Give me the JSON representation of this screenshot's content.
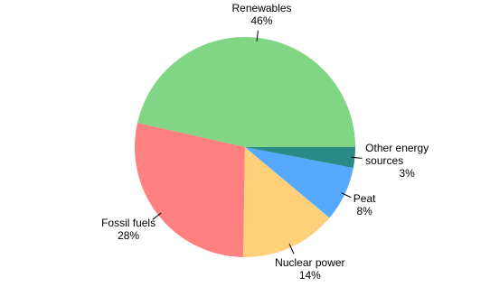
{
  "chart_data": {
    "type": "pie",
    "categories": [
      "Renewables",
      "Fossil fuels",
      "Nuclear power",
      "Peat",
      "Other energy sources"
    ],
    "values": [
      46,
      28,
      14,
      8,
      3
    ],
    "value_labels": [
      "46%",
      "28%",
      "14%",
      "8%",
      "3%"
    ],
    "colors": [
      "#80d684",
      "#ff8080",
      "#ffd07a",
      "#55aaff",
      "#2a8a86"
    ]
  }
}
